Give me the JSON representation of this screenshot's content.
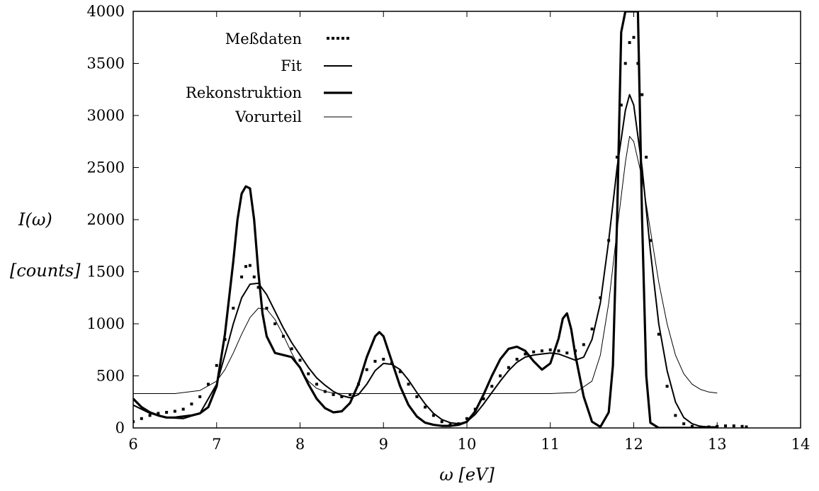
{
  "chart_data": {
    "type": "line",
    "title": "",
    "xlabel": "ω   [eV]",
    "ylabel": "I(ω)",
    "ylabel_unit": "[counts]",
    "xlim": [
      6,
      14
    ],
    "ylim": [
      0,
      4000
    ],
    "x_ticks": [
      "6",
      "7",
      "8",
      "9",
      "10",
      "11",
      "12",
      "13",
      "14"
    ],
    "y_ticks": [
      "0",
      "500",
      "1000",
      "1500",
      "2000",
      "2500",
      "3000",
      "3500",
      "4000"
    ],
    "grid": false,
    "legend_position": "top-left",
    "series": [
      {
        "name": "Meßdaten",
        "style": "points",
        "x": [
          6.0,
          6.1,
          6.2,
          6.3,
          6.4,
          6.5,
          6.6,
          6.7,
          6.8,
          6.9,
          7.0,
          7.1,
          7.2,
          7.3,
          7.35,
          7.4,
          7.45,
          7.5,
          7.6,
          7.7,
          7.8,
          7.9,
          8.0,
          8.1,
          8.2,
          8.3,
          8.4,
          8.5,
          8.6,
          8.7,
          8.8,
          8.9,
          9.0,
          9.1,
          9.2,
          9.3,
          9.4,
          9.5,
          9.6,
          9.7,
          9.8,
          9.9,
          10.0,
          10.1,
          10.2,
          10.3,
          10.4,
          10.5,
          10.6,
          10.7,
          10.8,
          10.9,
          11.0,
          11.1,
          11.2,
          11.3,
          11.4,
          11.5,
          11.6,
          11.7,
          11.8,
          11.85,
          11.9,
          11.95,
          12.0,
          12.05,
          12.1,
          12.15,
          12.2,
          12.3,
          12.4,
          12.5,
          12.6,
          12.7,
          12.8,
          12.9,
          13.0,
          13.1,
          13.2,
          13.3,
          13.35
        ],
        "y": [
          60,
          90,
          120,
          140,
          150,
          160,
          180,
          230,
          300,
          420,
          600,
          850,
          1150,
          1450,
          1550,
          1560,
          1450,
          1350,
          1150,
          1000,
          880,
          760,
          650,
          520,
          420,
          350,
          320,
          300,
          320,
          420,
          560,
          640,
          660,
          620,
          540,
          420,
          300,
          200,
          120,
          60,
          30,
          40,
          90,
          180,
          280,
          400,
          500,
          580,
          660,
          710,
          730,
          740,
          750,
          740,
          720,
          740,
          800,
          950,
          1250,
          1800,
          2600,
          3100,
          3500,
          3700,
          3750,
          3500,
          3200,
          2600,
          1800,
          900,
          400,
          120,
          40,
          15,
          10,
          10,
          15,
          20,
          20,
          15,
          10
        ]
      },
      {
        "name": "Fit",
        "style": "medium",
        "x": [
          6.0,
          6.2,
          6.4,
          6.6,
          6.8,
          7.0,
          7.1,
          7.2,
          7.3,
          7.4,
          7.5,
          7.6,
          7.7,
          7.8,
          7.9,
          8.0,
          8.1,
          8.2,
          8.3,
          8.4,
          8.5,
          8.6,
          8.7,
          8.8,
          8.9,
          9.0,
          9.1,
          9.2,
          9.3,
          9.4,
          9.5,
          9.6,
          9.7,
          9.8,
          9.9,
          10.0,
          10.1,
          10.2,
          10.3,
          10.4,
          10.5,
          10.6,
          10.7,
          10.8,
          10.9,
          11.0,
          11.1,
          11.2,
          11.3,
          11.4,
          11.5,
          11.6,
          11.7,
          11.8,
          11.9,
          11.95,
          12.0,
          12.1,
          12.2,
          12.3,
          12.4,
          12.5,
          12.6,
          12.7,
          12.8,
          12.9,
          13.0
        ],
        "y": [
          220,
          140,
          100,
          90,
          140,
          420,
          700,
          1000,
          1250,
          1380,
          1390,
          1280,
          1120,
          960,
          820,
          700,
          580,
          480,
          410,
          350,
          310,
          290,
          320,
          420,
          550,
          620,
          610,
          560,
          460,
          340,
          230,
          140,
          80,
          50,
          40,
          60,
          130,
          230,
          340,
          450,
          550,
          630,
          680,
          700,
          710,
          720,
          710,
          680,
          650,
          680,
          850,
          1200,
          1800,
          2500,
          3050,
          3200,
          3100,
          2500,
          1700,
          1000,
          550,
          250,
          100,
          40,
          15,
          10,
          10
        ]
      },
      {
        "name": "Rekonstruktion",
        "style": "thick",
        "x": [
          6.0,
          6.1,
          6.2,
          6.3,
          6.4,
          6.5,
          6.6,
          6.7,
          6.8,
          6.9,
          7.0,
          7.1,
          7.2,
          7.25,
          7.3,
          7.35,
          7.4,
          7.45,
          7.5,
          7.55,
          7.6,
          7.7,
          7.8,
          7.9,
          8.0,
          8.1,
          8.2,
          8.3,
          8.4,
          8.5,
          8.6,
          8.7,
          8.8,
          8.9,
          8.95,
          9.0,
          9.1,
          9.2,
          9.3,
          9.4,
          9.5,
          9.6,
          9.7,
          9.8,
          9.9,
          10.0,
          10.1,
          10.2,
          10.3,
          10.4,
          10.5,
          10.6,
          10.7,
          10.8,
          10.9,
          11.0,
          11.1,
          11.15,
          11.2,
          11.25,
          11.3,
          11.4,
          11.5,
          11.6,
          11.7,
          11.75,
          11.8,
          11.85,
          11.9,
          11.95,
          12.0,
          12.05,
          12.1,
          12.15,
          12.2,
          12.3,
          12.5,
          12.8,
          13.0
        ],
        "y": [
          280,
          200,
          150,
          120,
          100,
          100,
          110,
          120,
          140,
          200,
          400,
          900,
          1600,
          2000,
          2250,
          2320,
          2300,
          2000,
          1500,
          1100,
          880,
          720,
          700,
          680,
          580,
          420,
          280,
          190,
          150,
          160,
          240,
          420,
          680,
          880,
          920,
          880,
          640,
          400,
          220,
          110,
          50,
          30,
          20,
          20,
          30,
          60,
          160,
          320,
          500,
          660,
          760,
          780,
          740,
          640,
          560,
          620,
          860,
          1050,
          1100,
          950,
          700,
          300,
          60,
          10,
          150,
          600,
          2000,
          3800,
          4000,
          4000,
          4000,
          4000,
          2000,
          500,
          50,
          0,
          0,
          0,
          0
        ]
      },
      {
        "name": "Vorurteil",
        "style": "thin",
        "x": [
          6.0,
          6.5,
          6.8,
          7.0,
          7.1,
          7.2,
          7.3,
          7.4,
          7.5,
          7.6,
          7.7,
          7.8,
          7.9,
          8.0,
          8.1,
          8.2,
          8.3,
          8.4,
          8.5,
          9.0,
          10.0,
          11.0,
          11.3,
          11.5,
          11.6,
          11.7,
          11.8,
          11.9,
          11.95,
          12.0,
          12.1,
          12.2,
          12.3,
          12.4,
          12.5,
          12.6,
          12.7,
          12.8,
          12.9,
          13.0
        ],
        "y": [
          330,
          330,
          360,
          450,
          560,
          720,
          900,
          1060,
          1150,
          1140,
          1040,
          890,
          720,
          570,
          450,
          380,
          350,
          335,
          330,
          330,
          330,
          330,
          340,
          450,
          700,
          1200,
          1900,
          2550,
          2800,
          2750,
          2400,
          1900,
          1400,
          1000,
          700,
          520,
          420,
          370,
          345,
          335
        ]
      }
    ]
  }
}
